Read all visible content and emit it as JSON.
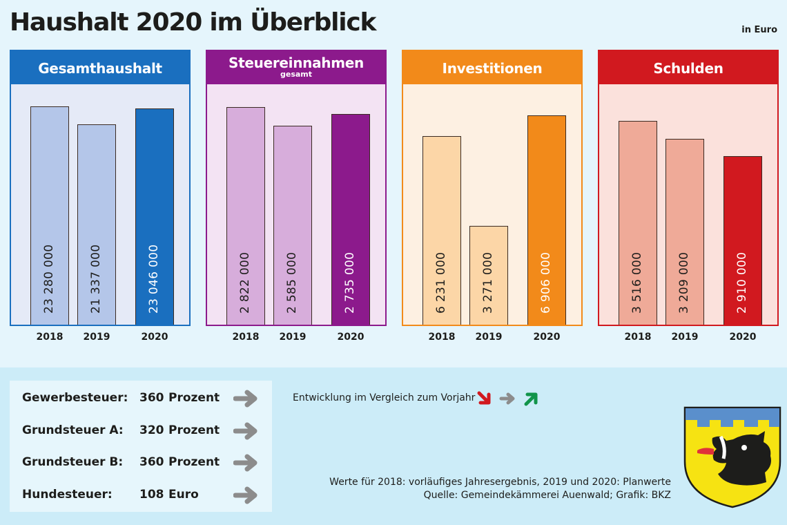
{
  "title": "Haushalt 2020 im Überblick",
  "unit": "in Euro",
  "chart_data": [
    {
      "type": "bar",
      "title": "Gesamthaushalt",
      "subtitle": "",
      "categories": [
        "2018",
        "2019",
        "2020"
      ],
      "values": [
        23280000,
        21337000,
        23046000
      ],
      "value_labels": [
        "23 280 000",
        "21 337 000",
        "23 046 000"
      ],
      "ylim": [
        0,
        25780000
      ],
      "colors": {
        "header": "#1a6fbf",
        "bg": "#e5eaf7",
        "bar": "#b4c6e9",
        "highlight": "#1a6fbf",
        "label": "#1d1d1b",
        "highlight_label": "#ffffff"
      }
    },
    {
      "type": "bar",
      "title": "Steuereinnahmen",
      "subtitle": "gesamt",
      "categories": [
        "2018",
        "2019",
        "2020"
      ],
      "values": [
        2822000,
        2585000,
        2735000
      ],
      "value_labels": [
        "2 822 000",
        "2 585 000",
        "2 735 000"
      ],
      "ylim": [
        0,
        3140000
      ],
      "colors": {
        "header": "#8c1a8c",
        "bg": "#f3e3f3",
        "bar": "#d7addb",
        "highlight": "#8c1a8c",
        "label": "#1d1d1b",
        "highlight_label": "#ffffff"
      }
    },
    {
      "type": "bar",
      "title": "Investitionen",
      "subtitle": "",
      "categories": [
        "2018",
        "2019",
        "2020"
      ],
      "values": [
        6231000,
        3271000,
        6906000
      ],
      "value_labels": [
        "6 231 000",
        "3 271 000",
        "6 906 000"
      ],
      "ylim": [
        0,
        7990000
      ],
      "colors": {
        "header": "#f28a1a",
        "bg": "#fdf0e2",
        "bar": "#fcd6a7",
        "highlight": "#f28a1a",
        "label": "#1d1d1b",
        "highlight_label": "#ffffff"
      }
    },
    {
      "type": "bar",
      "title": "Schulden",
      "subtitle": "",
      "categories": [
        "2018",
        "2019",
        "2020"
      ],
      "values": [
        3516000,
        3209000,
        2910000
      ],
      "value_labels": [
        "3 516 000",
        "3 209 000",
        "2 910 000"
      ],
      "ylim": [
        0,
        4170000
      ],
      "colors": {
        "header": "#d1191f",
        "bg": "#fbe1dc",
        "bar": "#efaa98",
        "highlight": "#d1191f",
        "label": "#1d1d1b",
        "highlight_label": "#ffffff"
      }
    }
  ],
  "taxes": [
    {
      "name": "Gewerbesteuer:",
      "value": "360",
      "unit": "Prozent",
      "trend": "same"
    },
    {
      "name": "Grundsteuer A:",
      "value": "320",
      "unit": "Prozent",
      "trend": "same"
    },
    {
      "name": "Grundsteuer B:",
      "value": "360",
      "unit": "Prozent",
      "trend": "same"
    },
    {
      "name": "Hundesteuer:",
      "value": "108",
      "unit": "Euro",
      "trend": "same"
    }
  ],
  "legend": {
    "text": "Entwicklung im Vergleich zum Vorjahr",
    "icons": [
      "arrow-down-right-icon",
      "arrow-right-icon",
      "arrow-up-right-icon"
    ],
    "colors": [
      "#d1191f",
      "#8c8c8c",
      "#11944a"
    ]
  },
  "notes": [
    "Werte für 2018: vorläufiges Jahresergebnis, 2019 und 2020: Planwerte",
    "Quelle: Gemeindekämmerei Auenwald; Grafik: BKZ"
  ]
}
